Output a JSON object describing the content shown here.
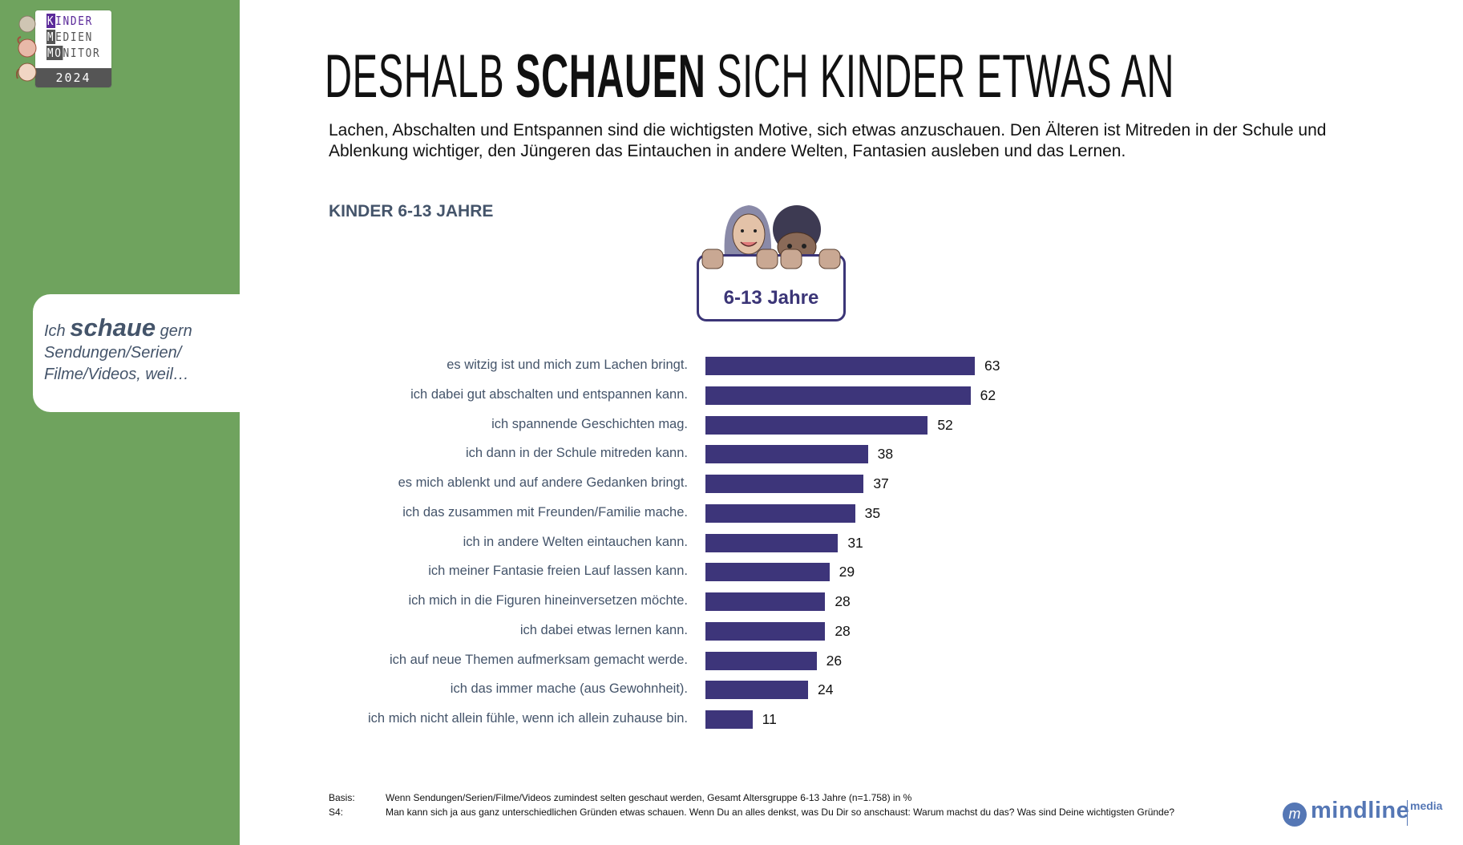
{
  "logo": {
    "line1_hl": "K",
    "line1_rest": "INDER",
    "line2_hl": "M",
    "line2_rest": "EDIEN",
    "line3_hl": "MO",
    "line3_rest": "NITOR",
    "year": "2024"
  },
  "callout": {
    "prefix": "Ich",
    "emphasis": "schaue",
    "suffix": "gern",
    "line2": "Sendungen/Serien/",
    "line3": "Filme/Videos, weil…"
  },
  "header": {
    "title_part1": "DESHALB",
    "title_bold": "SCHAUEN",
    "title_part2": "SICH KINDER ETWAS AN",
    "subtitle": "Lachen, Abschalten und Entspannen sind die wichtigsten Motive, sich etwas anzuschauen. Den Älteren ist Mitreden in der Schule und Ablenkung wichtiger, den Jüngeren das Eintauchen in andere Welten, Fantasien ausleben und das Lernen.",
    "section_label": "KINDER 6-13 JAHRE"
  },
  "age_badge": {
    "label": "6-13 Jahre"
  },
  "colors": {
    "bar": "#3d357a",
    "sidebar": "#6fa35e",
    "label": "#44546a",
    "brand": "#5577b5"
  },
  "chart_data": {
    "type": "bar",
    "orientation": "horizontal",
    "title": "Ich schaue gern Sendungen/Serien/Filme/Videos, weil…",
    "xlabel": "",
    "ylabel": "",
    "unit": "%",
    "xlim": [
      0,
      100
    ],
    "grid": false,
    "legend": "none",
    "categories": [
      "es witzig ist und mich zum Lachen bringt.",
      "ich dabei gut abschalten und entspannen kann.",
      "ich spannende Geschichten mag.",
      "ich dann in der Schule mitreden kann.",
      "es mich ablenkt und auf andere Gedanken bringt.",
      "ich das zusammen mit Freunden/Familie mache.",
      "ich in andere Welten eintauchen kann.",
      "ich meiner Fantasie freien Lauf lassen kann.",
      "ich mich in die Figuren hineinversetzen möchte.",
      "ich dabei etwas lernen kann.",
      "ich auf neue Themen aufmerksam gemacht werde.",
      "ich das immer mache (aus Gewohnheit).",
      "ich mich nicht allein fühle, wenn ich allein zuhause bin."
    ],
    "values": [
      63,
      62,
      52,
      38,
      37,
      35,
      31,
      29,
      28,
      28,
      26,
      24,
      11
    ]
  },
  "footer": {
    "basis_key": "Basis:",
    "basis_text": "Wenn Sendungen/Serien/Filme/Videos zumindest selten geschaut werden, Gesamt Altersgruppe 6-13 Jahre (n=1.758)  in %",
    "question_key": "S4:",
    "question_text": "Man kann sich ja aus ganz unterschiedlichen Gründen etwas schauen. Wenn Du an alles denkst, was Du Dir so anschaust: Warum machst du das? Was sind Deine wichtigsten Gründe?"
  },
  "brand": {
    "name": "mindline",
    "suffix": "media",
    "mark": "m"
  }
}
